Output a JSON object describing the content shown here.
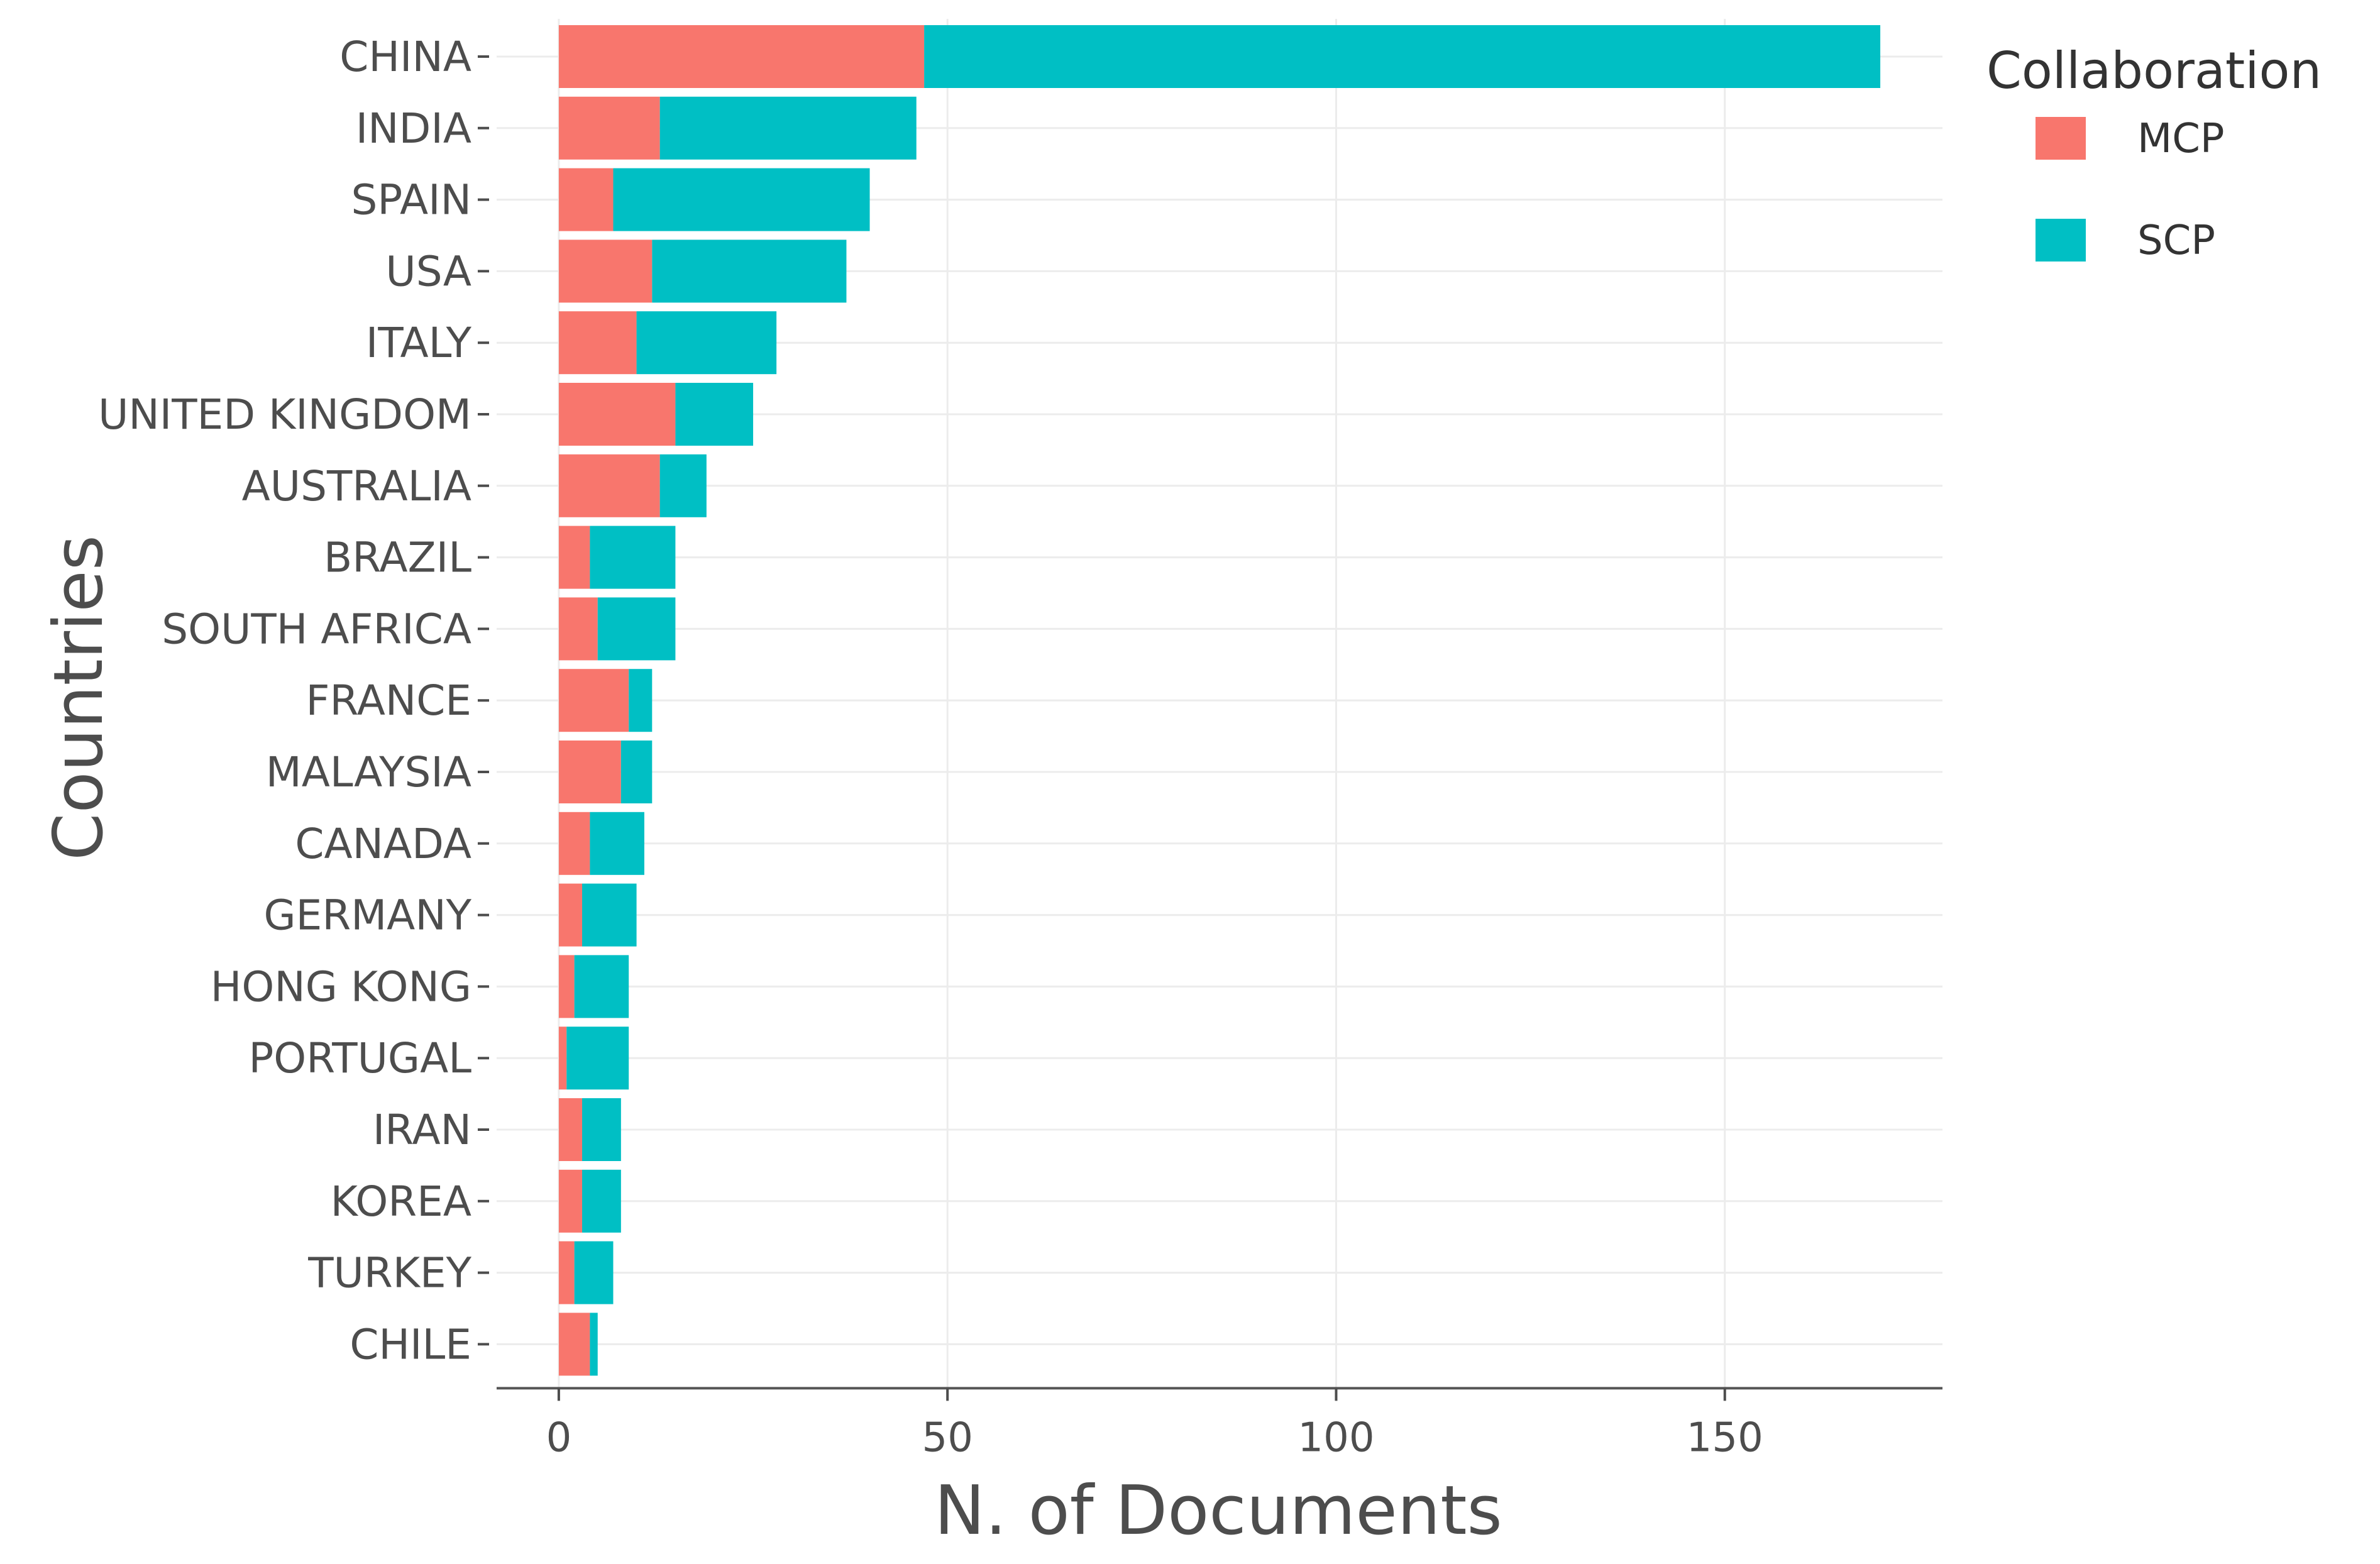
{
  "chart_data": {
    "type": "bar",
    "orientation": "horizontal",
    "stacked": true,
    "title": "",
    "xlabel": "N. of Documents",
    "ylabel": "Countries",
    "xlim": [
      -8,
      178
    ],
    "xticks": [
      0,
      50,
      100,
      150
    ],
    "grid": true,
    "legend": {
      "title": "Collaboration",
      "position": "right"
    },
    "categories": [
      "CHINA",
      "INDIA",
      "SPAIN",
      "USA",
      "ITALY",
      "UNITED KINGDOM",
      "AUSTRALIA",
      "BRAZIL",
      "SOUTH AFRICA",
      "FRANCE",
      "MALAYSIA",
      "CANADA",
      "GERMANY",
      "HONG KONG",
      "PORTUGAL",
      "IRAN",
      "KOREA",
      "TURKEY",
      "CHILE"
    ],
    "series": [
      {
        "name": "MCP",
        "color": "#F8766D",
        "values": [
          47,
          13,
          7,
          12,
          10,
          15,
          13,
          4,
          5,
          9,
          8,
          4,
          3,
          2,
          1,
          3,
          3,
          2,
          4
        ]
      },
      {
        "name": "SCP",
        "color": "#00BFC4",
        "values": [
          123,
          33,
          33,
          25,
          18,
          10,
          6,
          11,
          10,
          3,
          4,
          7,
          7,
          7,
          8,
          5,
          5,
          5,
          1
        ]
      }
    ]
  }
}
